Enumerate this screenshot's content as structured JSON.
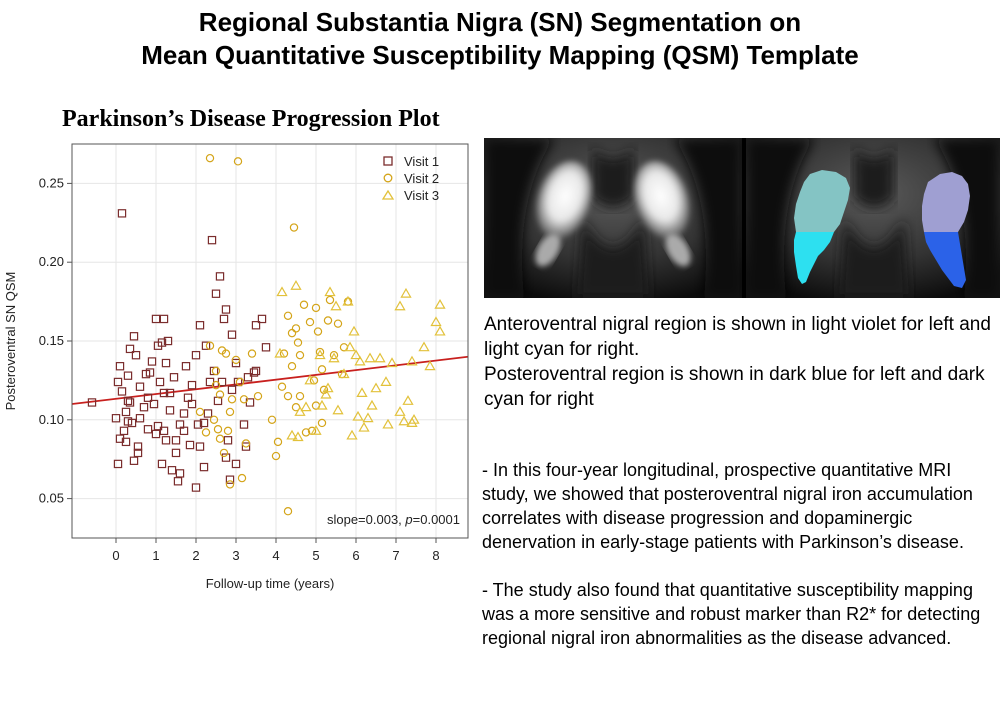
{
  "header": {
    "title_line1": "Regional Substantia Nigra (SN) Segmentation on",
    "title_line2": "Mean Quantitative Susceptibility Mapping (QSM) Template"
  },
  "chart_data": {
    "type": "scatter",
    "title": "Parkinson’s Disease Progression Plot",
    "xlabel": "Follow-up time (years)",
    "ylabel": "Posteroventral SN QSM",
    "xlim": [
      -1.1,
      8.8
    ],
    "ylim": [
      0.025,
      0.275
    ],
    "xticks": [
      0,
      1,
      2,
      3,
      4,
      5,
      6,
      7,
      8
    ],
    "yticks": [
      0.05,
      0.1,
      0.15,
      0.2,
      0.25
    ],
    "ytick_labels": [
      "0.05",
      "0.10",
      "0.15",
      "0.20",
      "0.25"
    ],
    "grid": true,
    "legend_position": "top-right",
    "annotation_prefix": "slope=0.003, ",
    "annotation_p": "p",
    "annotation_suffix": "=0.0001",
    "colors": {
      "visit1": "#7b2d2d",
      "visit2": "#d4a418",
      "visit3": "#e2c13a",
      "fit": "#c8201e"
    },
    "fit_line": {
      "x": [
        -1.1,
        8.8
      ],
      "y": [
        0.11,
        0.14
      ]
    },
    "series": [
      {
        "name": "Visit 1",
        "marker": "square",
        "points": [
          [
            -0.6,
            0.111
          ],
          [
            0.15,
            0.231
          ],
          [
            0.0,
            0.101
          ],
          [
            0.05,
            0.072
          ],
          [
            0.1,
            0.088
          ],
          [
            0.2,
            0.093
          ],
          [
            0.25,
            0.105
          ],
          [
            0.3,
            0.112
          ],
          [
            0.15,
            0.118
          ],
          [
            0.05,
            0.124
          ],
          [
            0.1,
            0.134
          ],
          [
            0.3,
            0.128
          ],
          [
            0.35,
            0.145
          ],
          [
            0.45,
            0.153
          ],
          [
            0.5,
            0.141
          ],
          [
            0.4,
            0.098
          ],
          [
            0.55,
            0.083
          ],
          [
            0.45,
            0.074
          ],
          [
            0.55,
            0.079
          ],
          [
            0.6,
            0.121
          ],
          [
            0.7,
            0.108
          ],
          [
            0.8,
            0.114
          ],
          [
            0.85,
            0.13
          ],
          [
            0.9,
            0.137
          ],
          [
            1.0,
            0.164
          ],
          [
            1.2,
            0.164
          ],
          [
            1.05,
            0.147
          ],
          [
            1.15,
            0.149
          ],
          [
            1.3,
            0.15
          ],
          [
            1.25,
            0.136
          ],
          [
            1.1,
            0.124
          ],
          [
            1.2,
            0.117
          ],
          [
            1.35,
            0.106
          ],
          [
            1.05,
            0.096
          ],
          [
            1.2,
            0.093
          ],
          [
            1.25,
            0.087
          ],
          [
            1.15,
            0.072
          ],
          [
            1.4,
            0.068
          ],
          [
            1.6,
            0.066
          ],
          [
            1.55,
            0.061
          ],
          [
            1.5,
            0.079
          ],
          [
            1.5,
            0.087
          ],
          [
            1.6,
            0.097
          ],
          [
            1.7,
            0.104
          ],
          [
            1.8,
            0.114
          ],
          [
            1.9,
            0.122
          ],
          [
            1.75,
            0.134
          ],
          [
            2.0,
            0.141
          ],
          [
            2.1,
            0.16
          ],
          [
            2.25,
            0.147
          ],
          [
            2.4,
            0.214
          ],
          [
            2.6,
            0.191
          ],
          [
            2.5,
            0.18
          ],
          [
            2.35,
            0.124
          ],
          [
            2.45,
            0.131
          ],
          [
            2.55,
            0.112
          ],
          [
            2.3,
            0.104
          ],
          [
            2.2,
            0.098
          ],
          [
            2.1,
            0.083
          ],
          [
            2.0,
            0.057
          ],
          [
            2.2,
            0.07
          ],
          [
            2.75,
            0.076
          ],
          [
            2.8,
            0.087
          ],
          [
            2.9,
            0.119
          ],
          [
            3.05,
            0.124
          ],
          [
            3.0,
            0.136
          ],
          [
            2.9,
            0.154
          ],
          [
            2.7,
            0.164
          ],
          [
            2.75,
            0.17
          ],
          [
            3.3,
            0.127
          ],
          [
            3.35,
            0.111
          ],
          [
            3.25,
            0.083
          ],
          [
            3.5,
            0.16
          ],
          [
            3.65,
            0.164
          ],
          [
            3.75,
            0.146
          ],
          [
            3.5,
            0.131
          ],
          [
            3.2,
            0.097
          ],
          [
            3.0,
            0.072
          ],
          [
            2.85,
            0.062
          ],
          [
            1.7,
            0.093
          ],
          [
            0.95,
            0.11
          ],
          [
            1.0,
            0.091
          ],
          [
            0.8,
            0.094
          ],
          [
            0.6,
            0.101
          ],
          [
            0.25,
            0.086
          ],
          [
            0.3,
            0.099
          ],
          [
            0.35,
            0.111
          ],
          [
            0.75,
            0.129
          ],
          [
            1.35,
            0.117
          ],
          [
            1.45,
            0.127
          ],
          [
            1.85,
            0.084
          ],
          [
            1.9,
            0.11
          ],
          [
            2.05,
            0.097
          ],
          [
            2.65,
            0.124
          ],
          [
            3.45,
            0.13
          ]
        ]
      },
      {
        "name": "Visit 2",
        "marker": "circle",
        "points": [
          [
            2.35,
            0.266
          ],
          [
            3.05,
            0.264
          ],
          [
            4.45,
            0.222
          ],
          [
            4.3,
            0.042
          ],
          [
            2.45,
            0.1
          ],
          [
            2.55,
            0.094
          ],
          [
            2.6,
            0.088
          ],
          [
            2.7,
            0.079
          ],
          [
            2.8,
            0.093
          ],
          [
            2.85,
            0.105
          ],
          [
            2.9,
            0.113
          ],
          [
            2.6,
            0.116
          ],
          [
            2.5,
            0.131
          ],
          [
            2.65,
            0.144
          ],
          [
            2.75,
            0.142
          ],
          [
            3.0,
            0.138
          ],
          [
            3.1,
            0.124
          ],
          [
            3.2,
            0.113
          ],
          [
            3.25,
            0.085
          ],
          [
            3.15,
            0.063
          ],
          [
            2.85,
            0.059
          ],
          [
            3.4,
            0.142
          ],
          [
            3.55,
            0.115
          ],
          [
            3.9,
            0.1
          ],
          [
            4.0,
            0.077
          ],
          [
            4.05,
            0.086
          ],
          [
            4.15,
            0.121
          ],
          [
            4.2,
            0.142
          ],
          [
            4.3,
            0.166
          ],
          [
            4.5,
            0.158
          ],
          [
            4.55,
            0.149
          ],
          [
            4.4,
            0.134
          ],
          [
            4.7,
            0.173
          ],
          [
            4.85,
            0.162
          ],
          [
            5.0,
            0.171
          ],
          [
            5.1,
            0.143
          ],
          [
            5.15,
            0.132
          ],
          [
            5.2,
            0.119
          ],
          [
            5.0,
            0.109
          ],
          [
            5.15,
            0.098
          ],
          [
            4.9,
            0.093
          ],
          [
            4.75,
            0.092
          ],
          [
            4.6,
            0.115
          ],
          [
            4.5,
            0.108
          ],
          [
            5.05,
            0.156
          ],
          [
            5.3,
            0.163
          ],
          [
            5.35,
            0.176
          ],
          [
            5.55,
            0.161
          ],
          [
            5.45,
            0.141
          ],
          [
            5.7,
            0.146
          ],
          [
            5.8,
            0.175
          ],
          [
            5.65,
            0.129
          ],
          [
            4.4,
            0.155
          ],
          [
            4.6,
            0.141
          ],
          [
            4.95,
            0.125
          ],
          [
            4.3,
            0.115
          ],
          [
            2.35,
            0.147
          ],
          [
            2.5,
            0.122
          ],
          [
            2.1,
            0.105
          ],
          [
            2.25,
            0.092
          ]
        ]
      },
      {
        "name": "Visit 3",
        "marker": "triangle",
        "points": [
          [
            4.15,
            0.181
          ],
          [
            4.5,
            0.185
          ],
          [
            5.35,
            0.181
          ],
          [
            5.5,
            0.172
          ],
          [
            5.8,
            0.175
          ],
          [
            7.25,
            0.18
          ],
          [
            7.1,
            0.172
          ],
          [
            8.1,
            0.173
          ],
          [
            8.0,
            0.162
          ],
          [
            8.1,
            0.156
          ],
          [
            7.7,
            0.146
          ],
          [
            7.85,
            0.134
          ],
          [
            7.4,
            0.137
          ],
          [
            6.1,
            0.137
          ],
          [
            6.35,
            0.139
          ],
          [
            6.6,
            0.139
          ],
          [
            6.9,
            0.136
          ],
          [
            5.95,
            0.156
          ],
          [
            5.85,
            0.146
          ],
          [
            5.7,
            0.129
          ],
          [
            6.15,
            0.117
          ],
          [
            6.5,
            0.12
          ],
          [
            6.75,
            0.124
          ],
          [
            7.3,
            0.112
          ],
          [
            7.1,
            0.105
          ],
          [
            6.4,
            0.109
          ],
          [
            6.3,
            0.101
          ],
          [
            6.2,
            0.095
          ],
          [
            6.05,
            0.102
          ],
          [
            5.9,
            0.09
          ],
          [
            6.8,
            0.097
          ],
          [
            7.2,
            0.099
          ],
          [
            7.4,
            0.098
          ],
          [
            7.45,
            0.1
          ],
          [
            5.55,
            0.106
          ],
          [
            5.0,
            0.093
          ],
          [
            5.15,
            0.109
          ],
          [
            4.75,
            0.108
          ],
          [
            4.6,
            0.105
          ],
          [
            4.4,
            0.09
          ],
          [
            4.55,
            0.089
          ],
          [
            5.45,
            0.139
          ],
          [
            5.1,
            0.141
          ],
          [
            4.85,
            0.125
          ],
          [
            5.3,
            0.12
          ],
          [
            6.0,
            0.141
          ],
          [
            5.25,
            0.116
          ],
          [
            4.1,
            0.142
          ]
        ]
      }
    ]
  },
  "image_panel": {
    "colors": {
      "light_violet": "#9f9fd2",
      "light_cyan": "#84c4c4",
      "dark_blue": "#2b62e8",
      "dark_cyan": "#2de0f0"
    }
  },
  "caption": {
    "line1": "Anteroventral nigral region is shown in light violet for left and light cyan for right.",
    "line2": "Posteroventral region is shown in dark blue for left and dark cyan for right"
  },
  "notes": {
    "p1": "- In this four-year longitudinal, prospective quantitative MRI study, we showed that posteroventral nigral iron accumulation correlates with disease progression and dopaminergic denervation in early-stage patients with Parkinson’s disease.",
    "p2": "- The study also found that quantitative susceptibility mapping was a more sensitive and robust marker than R2* for detecting regional nigral iron abnormalities as the disease advanced."
  }
}
